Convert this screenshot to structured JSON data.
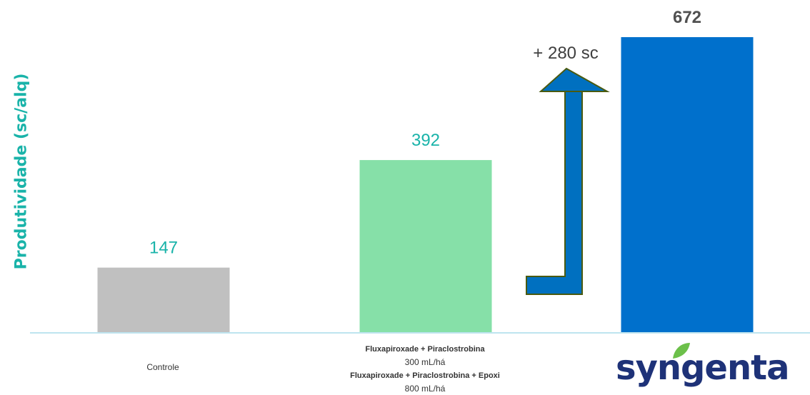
{
  "chart_data": {
    "type": "bar",
    "categories": [
      "Controle",
      "Fluxapiroxade + Piraclostrobina 300 mL/há Fluxapiroxade + Piraclostrobina + Epoxi 800 mL/há",
      "syngenta"
    ],
    "values": [
      147,
      392,
      672
    ],
    "data_labels": [
      "147",
      "392",
      "672"
    ],
    "ylabel": "Produtividade (sc/alq)",
    "xlabel": "",
    "ylim": [
      0,
      672
    ],
    "grid": false,
    "legend": "none",
    "bar_colors": [
      "#c0c0c0",
      "#86e0a8",
      "#0070cc"
    ],
    "label_colors": [
      "#19b3a9",
      "#19b3a9",
      "#505050"
    ],
    "annotation": "+ 280 sc"
  },
  "category_text": {
    "controle": "Controle",
    "treatment_line1": "Fluxapiroxade + Piraclostrobina",
    "treatment_line2": "300 mL/há",
    "treatment_line3": "Fluxapiroxade + Piraclostrobina + Epoxi",
    "treatment_line4": "800 mL/há",
    "brand": "syngenta"
  },
  "colors": {
    "axis_label": "#19b3a9",
    "baseline": "#a8dcea",
    "arrow_fill": "#0070c0",
    "arrow_stroke": "#4a5a10",
    "brand_text": "#1e3278",
    "brand_leaf": "#6cc04a"
  },
  "icons": {
    "brand_leaf": "leaf-icon",
    "arrow": "up-arrow-icon"
  }
}
